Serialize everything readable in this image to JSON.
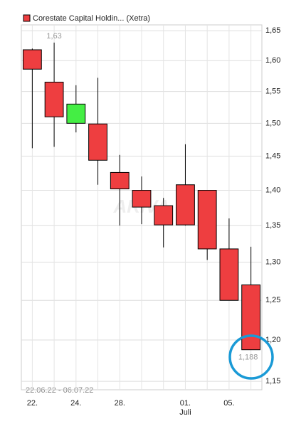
{
  "chart_data": {
    "type": "candlestick",
    "legend": "Corestate Capital Holdin... (Xetra)",
    "date_range": "22.06.22 - 06.07.22",
    "watermark": "ARIVA",
    "month_label": "Juli",
    "categories": [
      "22.",
      null,
      "24.",
      null,
      "28.",
      null,
      null,
      "01.",
      null,
      "05.",
      null
    ],
    "open": [
      1.618,
      1.565,
      1.5,
      1.499,
      1.426,
      1.4,
      1.378,
      1.408,
      1.4,
      1.318,
      1.27
    ],
    "high": [
      1.62,
      1.63,
      1.56,
      1.572,
      1.452,
      1.42,
      1.389,
      1.468,
      1.4,
      1.36,
      1.321
    ],
    "low": [
      1.462,
      1.464,
      1.486,
      1.408,
      1.35,
      1.352,
      1.32,
      1.35,
      1.303,
      1.25,
      1.188
    ],
    "close": [
      1.586,
      1.51,
      1.53,
      1.444,
      1.402,
      1.376,
      1.351,
      1.351,
      1.318,
      1.25,
      1.188
    ],
    "up_color": "#44ee44",
    "down_color": "#ee3e40",
    "legend_color": "#ee3e40",
    "log_scale": true,
    "grid": true,
    "ylim": [
      1.14,
      1.66
    ],
    "yticks": [
      {
        "value": 1.15,
        "label": "1,15"
      },
      {
        "value": 1.2,
        "label": "1,20"
      },
      {
        "value": 1.25,
        "label": "1,25"
      },
      {
        "value": 1.3,
        "label": "1,30"
      },
      {
        "value": 1.35,
        "label": "1,35"
      },
      {
        "value": 1.4,
        "label": "1,40"
      },
      {
        "value": 1.45,
        "label": "1,45"
      },
      {
        "value": 1.5,
        "label": "1,50"
      },
      {
        "value": 1.55,
        "label": "1,55"
      },
      {
        "value": 1.6,
        "label": "1,60"
      },
      {
        "value": 1.65,
        "label": "1,65"
      }
    ],
    "annotations": [
      {
        "value": 1.63,
        "label": "1,63"
      },
      {
        "value": 1.188,
        "label": "1,188"
      }
    ]
  }
}
